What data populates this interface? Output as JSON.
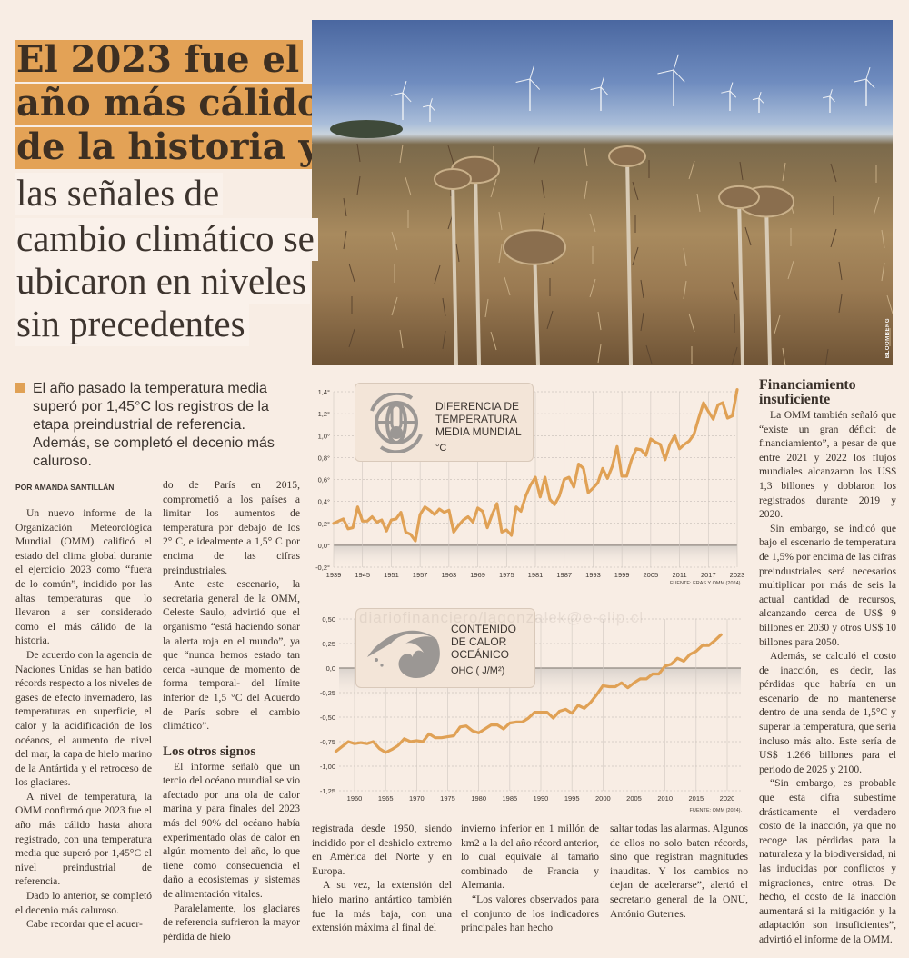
{
  "headline": {
    "bold_lines": [
      "El 2023 fue el",
      "año más cálido",
      "de la historia y"
    ],
    "light_lines": [
      "las señales de",
      "cambio climático se",
      "ubicaron en niveles",
      "sin precedentes"
    ],
    "highlight_color": "#e3a256"
  },
  "photo": {
    "credit": "BLOOMBERG",
    "subject": "wind-turbines-dry-sunflower-field"
  },
  "lead": "El año pasado la temperatura media superó por 1,45°C los registros de la etapa preindustrial de referencia. Además, se completó el decenio más caluroso.",
  "byline": "POR AMANDA SANTILLÁN",
  "watermark": "diariofinanciero/lagonzalek@e-clip.cl",
  "columns": {
    "c1": [
      "Un nuevo informe de la Organización Meteorológica Mundial (OMM) calificó el estado del clima global durante el ejercicio 2023 como “fuera de lo común”, incidido por las altas temperaturas que lo llevaron a ser considerado como el más cálido de la historia.",
      "De acuerdo con la agencia de Naciones Unidas se han batido récords respecto a los niveles de gases de efecto invernadero, las temperaturas en superficie, el calor y la acidificación de los océanos, el aumento de nivel del mar, la capa de hielo marino de la Antártida y el retroceso de los glaciares.",
      "A nivel de temperatura, la OMM confirmó que 2023 fue el año más cálido hasta ahora registrado, con una temperatura media que superó por 1,45°C el nivel preindustrial de referencia.",
      "Dado lo anterior, se completó el decenio más caluroso.",
      "Cabe recordar que el acuer-"
    ],
    "c2": [
      "do de París en 2015, comprometió a los países a limitar los aumentos de temperatura por debajo de los 2° C, e idealmente a 1,5° C por encima de las cifras preindustriales.",
      "Ante este escenario, la secretaria general de la OMM, Celeste Saulo, advirtió que el organismo “está haciendo sonar la alerta roja en el mundo”, ya que “nunca hemos estado tan cerca -aunque de momento de forma temporal- del límite inferior de 1,5 °C del Acuerdo de París sobre el cambio climático”."
    ],
    "c2_heading": "Los otros signos",
    "c2b": [
      "El informe señaló que un tercio del océano mundial se vio afectado por una ola de calor marina y para finales del 2023 más del 90% del océano había experimentado olas de calor en algún momento del año, lo que tiene como consecuencia el daño a ecosistemas y sistemas de alimentación vitales.",
      "Paralelamente, los glaciares de referencia sufrieron la mayor pérdida de hielo"
    ],
    "c3": [
      "registrada desde 1950, siendo incidido por el deshielo extremo en América del Norte y en Europa.",
      "A su vez, la extensión del hielo marino antártico también fue la más baja, con una extensión máxima al final del"
    ],
    "c4": [
      "invierno inferior en 1 millón de km2 a la del año récord anterior, lo cual equivale al tamaño combinado de Francia y Alemania.",
      "“Los valores observados para el conjunto de los indicadores principales han hecho"
    ],
    "c5": [
      "saltar todas las alarmas. Algunos de ellos no solo baten récords, sino que registran magnitudes inauditas. Y los cambios no dejan de acelerarse”, alertó el secretario general de la ONU, António Guterres."
    ],
    "c6_heading": "Financiamiento insuficiente",
    "c6": [
      "La OMM también señaló que “existe un gran déficit de financiamiento”, a pesar de que entre 2021 y 2022 los flujos mundiales alcanzaron los US$ 1,3 billones y doblaron los registrados durante 2019 y 2020.",
      "Sin embargo, se indicó que bajo el escenario de temperatura de 1,5% por encima de las cifras preindustriales será necesarios multiplicar por más de seis la actual cantidad de recursos, alcanzando cerca de US$ 9 billones en 2030 y otros US$ 10 billones para 2050.",
      "Además, se calculó el costo de inacción, es decir, las pérdidas que habría en un escenario de no mantenerse dentro de una senda de 1,5°C y superar la temperatura, que sería incluso más alto. Este sería de US$ 1.266 billones para el periodo de 2025 y 2100.",
      "“Sin embargo, es probable que esta cifra subestime drásticamente el verdadero costo de la inacción, ya que no recoge las pérdidas para la naturaleza y la biodiversidad, ni las inducidas por conflictos y migraciones, entre otras. De hecho, el costo de la inacción aumentará si la mitigación y la adaptación son insuficientes”, advirtió el informe de la OMM."
    ]
  },
  "chart_data": [
    {
      "type": "line",
      "title": "DIFERENCIA DE TEMPERATURA MEDIA MUNDIAL",
      "unit": "°C",
      "icon": "thermometer-globe-icon",
      "source": "FUENTE: ERAS Y OMM (2024).",
      "color": "#e0a155",
      "xlim": [
        1939,
        2024
      ],
      "ylim": [
        -0.2,
        1.4
      ],
      "grid": true,
      "x_ticks": [
        "1939",
        "1945",
        "1951",
        "1957",
        "1963",
        "1969",
        "1975",
        "1981",
        "1987",
        "1993",
        "1999",
        "2005",
        "2011",
        "2017",
        "2023"
      ],
      "y_ticks": [
        "1,4°",
        "1,2°",
        "1,0°",
        "0,8°",
        "0,6°",
        "0,4°",
        "0,2°",
        "0,0°",
        "-0,2°"
      ],
      "y_tick_values": [
        1.4,
        1.2,
        1.0,
        0.8,
        0.6,
        0.4,
        0.2,
        0.0,
        -0.2
      ],
      "x": [
        1939,
        1940,
        1941,
        1942,
        1943,
        1944,
        1945,
        1946,
        1947,
        1948,
        1949,
        1950,
        1951,
        1952,
        1953,
        1954,
        1955,
        1956,
        1957,
        1958,
        1959,
        1960,
        1961,
        1962,
        1963,
        1964,
        1965,
        1966,
        1967,
        1968,
        1969,
        1970,
        1971,
        1972,
        1973,
        1974,
        1975,
        1976,
        1977,
        1978,
        1979,
        1980,
        1981,
        1982,
        1983,
        1984,
        1985,
        1986,
        1987,
        1988,
        1989,
        1990,
        1991,
        1992,
        1993,
        1994,
        1995,
        1996,
        1997,
        1998,
        1999,
        2000,
        2001,
        2002,
        2003,
        2004,
        2005,
        2006,
        2007,
        2008,
        2009,
        2010,
        2011,
        2012,
        2013,
        2014,
        2015,
        2016,
        2017,
        2018,
        2019,
        2020,
        2021,
        2022,
        2023
      ],
      "y": [
        0.2,
        0.22,
        0.24,
        0.15,
        0.16,
        0.35,
        0.22,
        0.22,
        0.26,
        0.21,
        0.23,
        0.13,
        0.23,
        0.24,
        0.3,
        0.12,
        0.1,
        0.04,
        0.28,
        0.35,
        0.32,
        0.28,
        0.33,
        0.3,
        0.32,
        0.12,
        0.18,
        0.23,
        0.26,
        0.21,
        0.34,
        0.31,
        0.16,
        0.28,
        0.38,
        0.12,
        0.14,
        0.09,
        0.35,
        0.31,
        0.45,
        0.55,
        0.62,
        0.44,
        0.62,
        0.42,
        0.37,
        0.45,
        0.6,
        0.62,
        0.53,
        0.74,
        0.7,
        0.48,
        0.52,
        0.57,
        0.7,
        0.61,
        0.72,
        0.9,
        0.63,
        0.63,
        0.78,
        0.88,
        0.87,
        0.82,
        0.97,
        0.94,
        0.92,
        0.78,
        0.92,
        1.0,
        0.88,
        0.92,
        0.95,
        1.01,
        1.16,
        1.3,
        1.22,
        1.15,
        1.28,
        1.3,
        1.16,
        1.18,
        1.42
      ]
    },
    {
      "type": "line",
      "title": "CONTENIDO DE CALOR OCEÁNICO",
      "unit": "OHC ( J/M²)",
      "icon": "ocean-wave-icon",
      "source": "FUENTE: OMM (2024).",
      "color": "#e0a155",
      "xlim": [
        1957,
        2022
      ],
      "ylim": [
        -1.25,
        0.5
      ],
      "grid": true,
      "x_ticks": [
        "1960",
        "1965",
        "1970",
        "1975",
        "1980",
        "1985",
        "1990",
        "1995",
        "2000",
        "2005",
        "2010",
        "2015",
        "2020"
      ],
      "y_ticks": [
        "0,50",
        "0,25",
        "0,0",
        "-0,25",
        "-0,50",
        "-0,75",
        "-1,00",
        "-1,25"
      ],
      "y_tick_values": [
        0.5,
        0.25,
        0,
        -0.25,
        -0.5,
        -0.75,
        -1.0,
        -1.25
      ],
      "x": [
        1957,
        1958,
        1959,
        1960,
        1961,
        1962,
        1963,
        1964,
        1965,
        1966,
        1967,
        1968,
        1969,
        1970,
        1971,
        1972,
        1973,
        1974,
        1975,
        1976,
        1977,
        1978,
        1979,
        1980,
        1981,
        1982,
        1983,
        1984,
        1985,
        1986,
        1987,
        1988,
        1989,
        1990,
        1991,
        1992,
        1993,
        1994,
        1995,
        1996,
        1997,
        1998,
        1999,
        2000,
        2001,
        2002,
        2003,
        2004,
        2005,
        2006,
        2007,
        2008,
        2009,
        2010,
        2011,
        2012,
        2013,
        2014,
        2015,
        2016,
        2017,
        2018,
        2019
      ],
      "y": [
        -0.85,
        -0.8,
        -0.75,
        -0.77,
        -0.76,
        -0.77,
        -0.75,
        -0.82,
        -0.86,
        -0.83,
        -0.79,
        -0.72,
        -0.75,
        -0.74,
        -0.75,
        -0.67,
        -0.71,
        -0.71,
        -0.7,
        -0.69,
        -0.6,
        -0.59,
        -0.64,
        -0.66,
        -0.62,
        -0.58,
        -0.58,
        -0.62,
        -0.56,
        -0.55,
        -0.55,
        -0.51,
        -0.45,
        -0.45,
        -0.45,
        -0.51,
        -0.44,
        -0.42,
        -0.46,
        -0.38,
        -0.41,
        -0.35,
        -0.27,
        -0.18,
        -0.19,
        -0.19,
        -0.15,
        -0.2,
        -0.15,
        -0.11,
        -0.11,
        -0.06,
        -0.06,
        0.02,
        0.04,
        0.1,
        0.07,
        0.14,
        0.17,
        0.23,
        0.23,
        0.28,
        0.34
      ]
    }
  ]
}
